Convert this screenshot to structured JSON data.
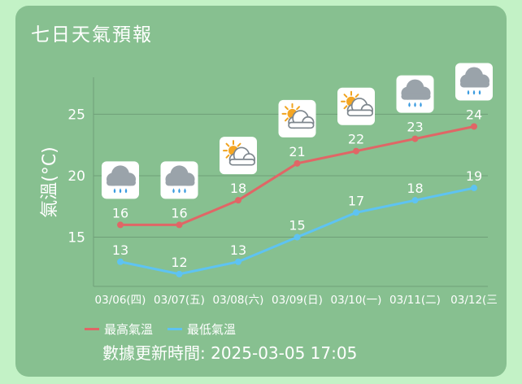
{
  "widget": {
    "title": "七日天氣預報",
    "updated_text": "數據更新時間: 2025-03-05 17:05"
  },
  "colors": {
    "background": "#c3f2c6",
    "card": "#87c090",
    "high": "#e06666",
    "low": "#5ec3f2",
    "grid": "#6f9f78",
    "text": "#ffffff"
  },
  "chart_data": {
    "type": "line",
    "title": "",
    "xlabel": "",
    "ylabel": "氣溫(°C)",
    "ylim": [
      11,
      28
    ],
    "yticks": [
      15,
      20,
      25
    ],
    "grid": true,
    "legend": "bottom-left",
    "categories": [
      "03/06(四)",
      "03/07(五)",
      "03/08(六)",
      "03/09(日)",
      "03/10(一)",
      "03/11(二)",
      "03/12(三"
    ],
    "icons": [
      "rain-cloud-icon",
      "rain-cloud-icon",
      "partly-cloudy-icon",
      "partly-cloudy-icon",
      "partly-cloudy-icon",
      "rain-cloud-icon",
      "rain-cloud-icon"
    ],
    "series": [
      {
        "name": "最高氣溫",
        "values": [
          16,
          16,
          18,
          21,
          22,
          23,
          24
        ]
      },
      {
        "name": "最低氣溫",
        "values": [
          13,
          12,
          13,
          15,
          17,
          18,
          19
        ]
      }
    ]
  }
}
